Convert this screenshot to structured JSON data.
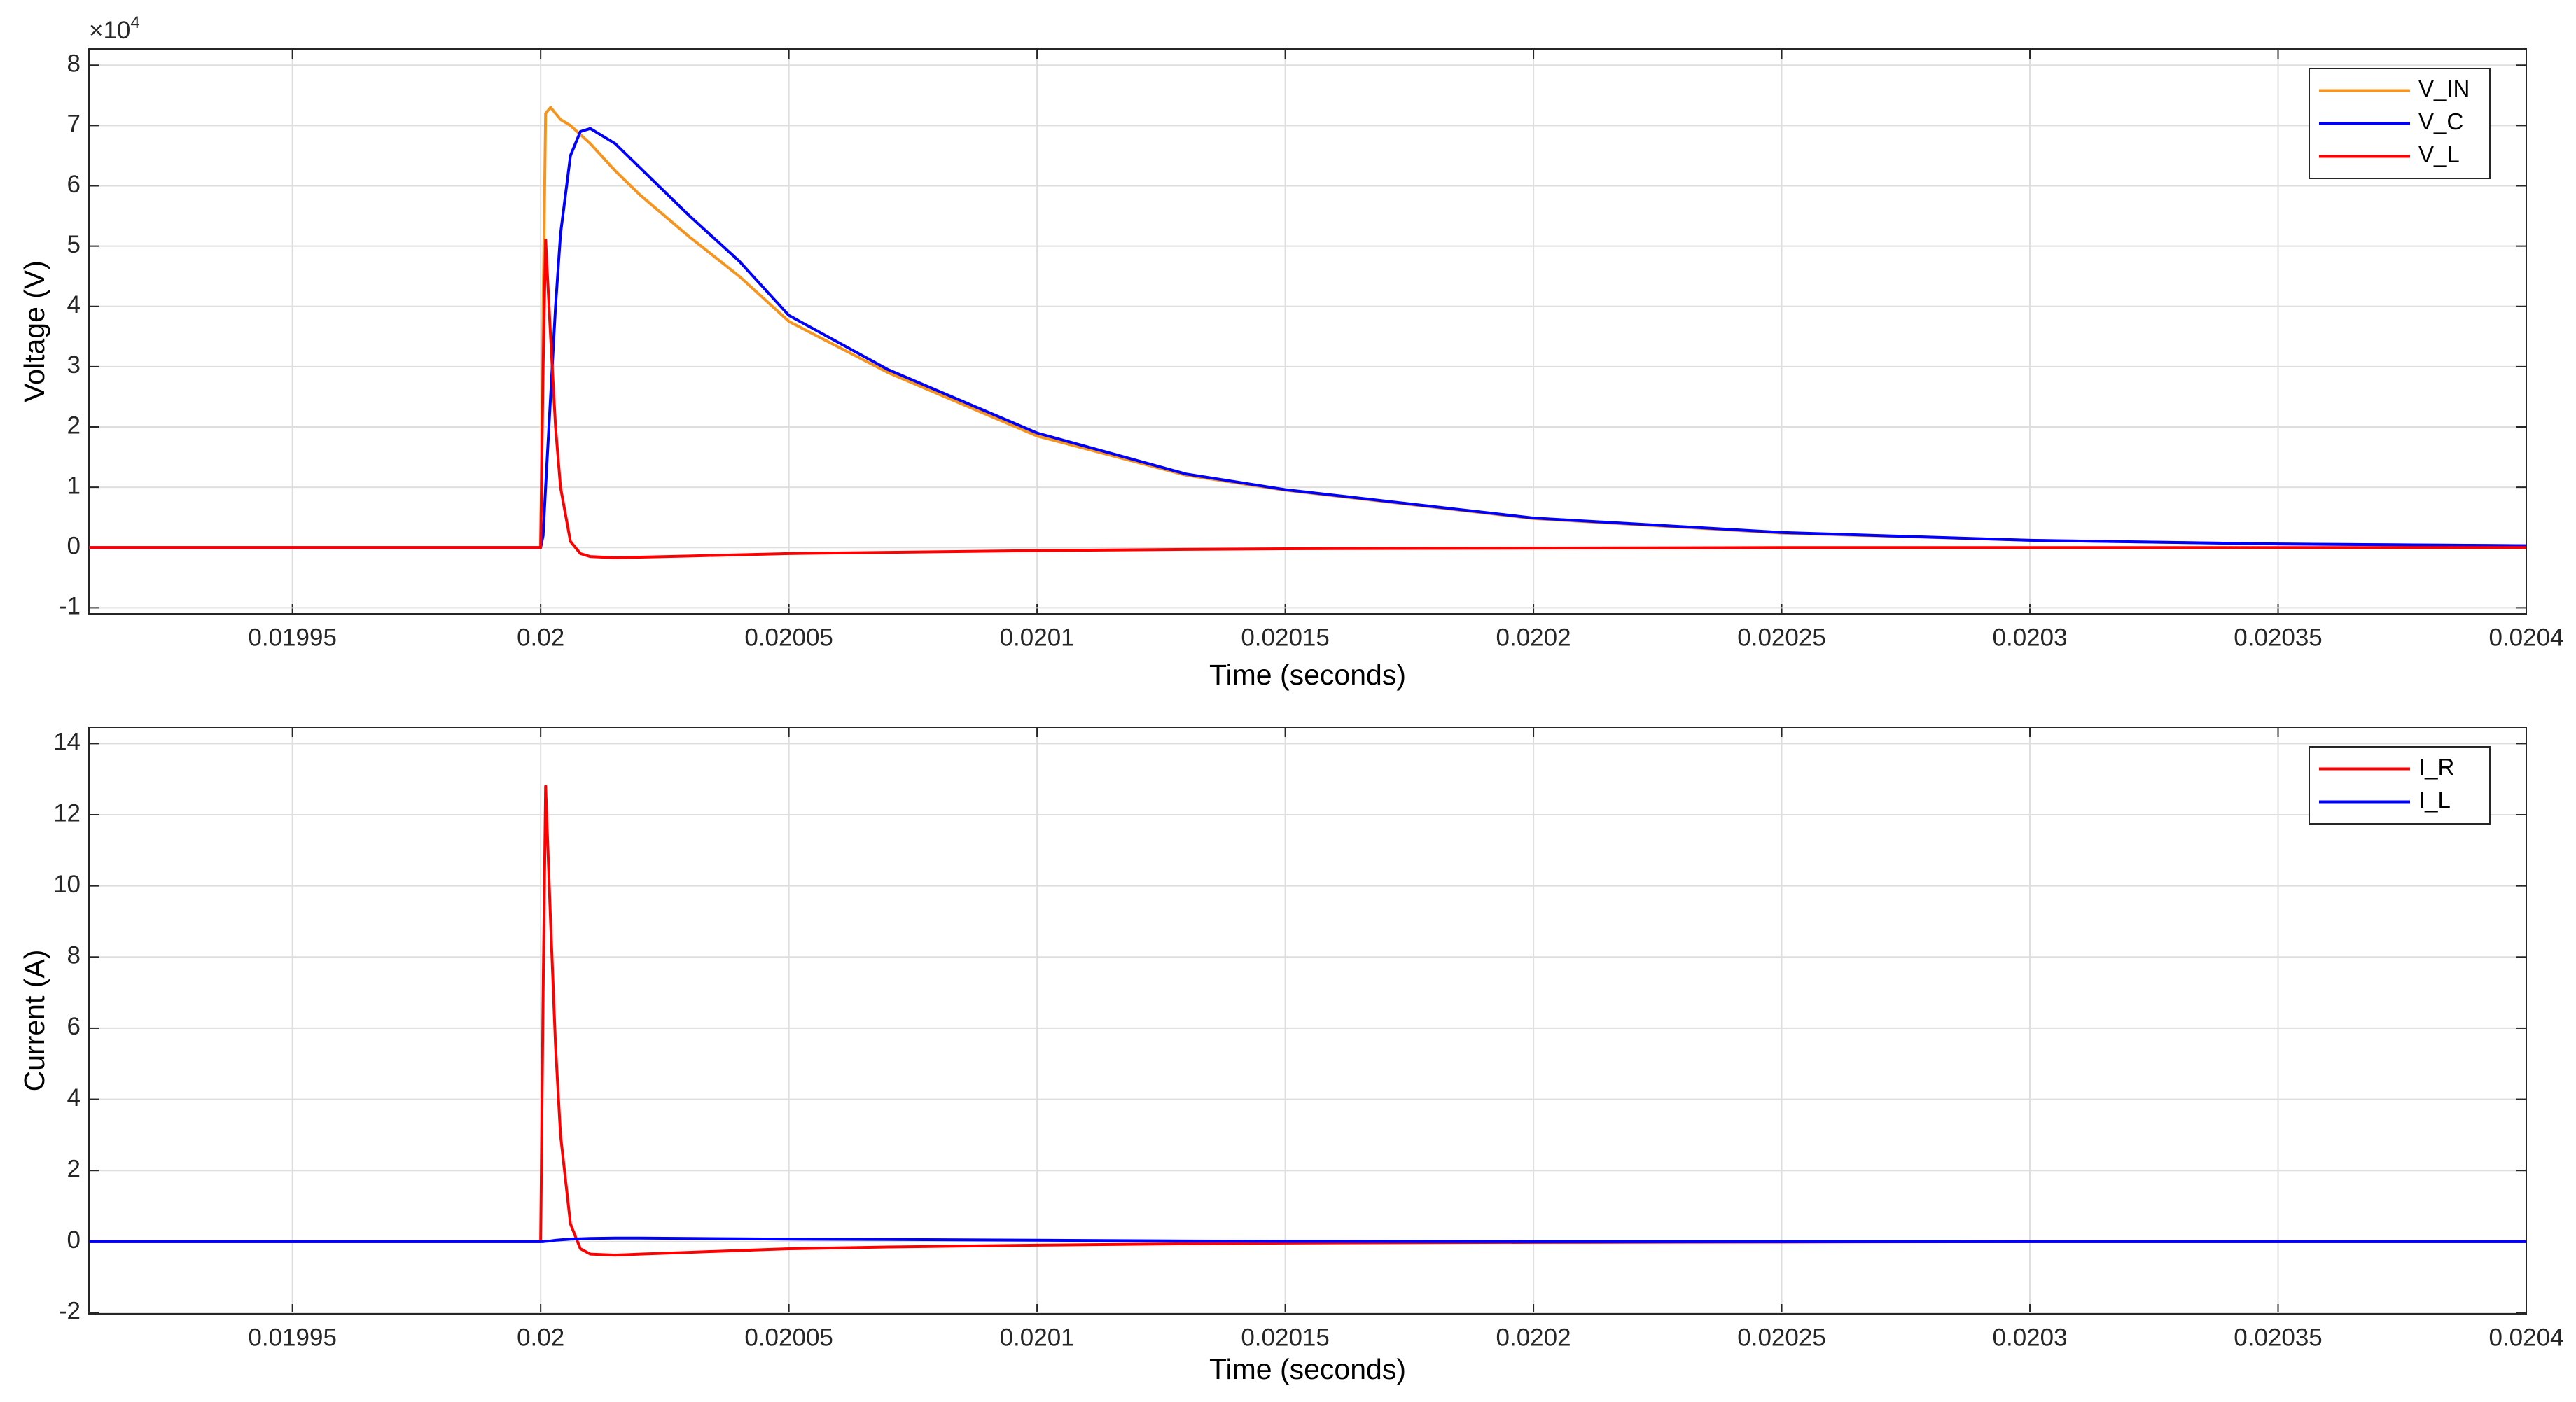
{
  "chart_data": [
    {
      "type": "line",
      "xlabel": "Time (seconds)",
      "ylabel": "Voltage (V)",
      "y_multiplier": {
        "base": "×10",
        "exponent": "4"
      },
      "xlim": [
        0.019909,
        0.0204
      ],
      "ylim": [
        -1.1,
        8.27
      ],
      "xticks": [
        0.01995,
        0.02,
        0.02005,
        0.0201,
        0.02015,
        0.0202,
        0.02025,
        0.0203,
        0.02035,
        0.0204
      ],
      "yticks": [
        -1,
        0,
        1,
        2,
        3,
        4,
        5,
        6,
        7,
        8
      ],
      "grid": true,
      "legend": "northeast",
      "x": [
        0.019909,
        0.02,
        0.0200005,
        0.020001,
        0.020002,
        0.020003,
        0.020004,
        0.020006,
        0.020008,
        0.02001,
        0.020015,
        0.02002,
        0.02003,
        0.02004,
        0.02005,
        0.02007,
        0.0201,
        0.02013,
        0.02015,
        0.0202,
        0.02025,
        0.0203,
        0.02035,
        0.0204
      ],
      "series": [
        {
          "name": "V_IN",
          "color": "#f7941d",
          "values": [
            0,
            0,
            4.0,
            7.2,
            7.3,
            7.2,
            7.1,
            7.0,
            6.85,
            6.7,
            6.25,
            5.85,
            5.15,
            4.5,
            3.75,
            2.9,
            1.85,
            1.2,
            0.95,
            0.48,
            0.24,
            0.12,
            0.06,
            0.03
          ]
        },
        {
          "name": "V_C",
          "color": "#0000ff",
          "values": [
            0,
            0,
            0.2,
            1.0,
            2.5,
            4.0,
            5.2,
            6.5,
            6.9,
            6.95,
            6.7,
            6.3,
            5.5,
            4.75,
            3.85,
            2.95,
            1.9,
            1.22,
            0.96,
            0.49,
            0.25,
            0.12,
            0.06,
            0.03
          ]
        },
        {
          "name": "V_L",
          "color": "#ff0000",
          "values": [
            0,
            0,
            3.0,
            5.1,
            3.5,
            2.0,
            1.0,
            0.1,
            -0.1,
            -0.15,
            -0.17,
            -0.16,
            -0.14,
            -0.12,
            -0.1,
            -0.08,
            -0.05,
            -0.03,
            -0.02,
            -0.01,
            0,
            0,
            0,
            0
          ]
        }
      ]
    },
    {
      "type": "line",
      "xlabel": "Time (seconds)",
      "ylabel": "Current (A)",
      "xlim": [
        0.019909,
        0.0204
      ],
      "ylim": [
        -2.03,
        14.46
      ],
      "xticks": [
        0.01995,
        0.02,
        0.02005,
        0.0201,
        0.02015,
        0.0202,
        0.02025,
        0.0203,
        0.02035,
        0.0204
      ],
      "yticks": [
        -2,
        0,
        2,
        4,
        6,
        8,
        10,
        12,
        14
      ],
      "grid": true,
      "legend": "northeast",
      "x": [
        0.019909,
        0.02,
        0.0200005,
        0.020001,
        0.020002,
        0.020003,
        0.020004,
        0.020006,
        0.020008,
        0.02001,
        0.020015,
        0.02002,
        0.02003,
        0.02004,
        0.02005,
        0.02007,
        0.0201,
        0.02013,
        0.02015,
        0.0202,
        0.02025,
        0.0203,
        0.02035,
        0.0204
      ],
      "series": [
        {
          "name": "I_R",
          "color": "#ff0000",
          "values": [
            0,
            0,
            7.0,
            12.8,
            9.0,
            5.5,
            3.0,
            0.5,
            -0.2,
            -0.35,
            -0.38,
            -0.35,
            -0.3,
            -0.25,
            -0.2,
            -0.15,
            -0.1,
            -0.06,
            -0.04,
            -0.02,
            -0.01,
            0,
            0,
            0
          ]
        },
        {
          "name": "I_L",
          "color": "#0000ff",
          "values": [
            0,
            0,
            0,
            0.01,
            0.02,
            0.04,
            0.05,
            0.07,
            0.08,
            0.09,
            0.1,
            0.1,
            0.09,
            0.08,
            0.07,
            0.06,
            0.04,
            0.02,
            0.01,
            0,
            0,
            0,
            0,
            0
          ]
        }
      ]
    }
  ]
}
